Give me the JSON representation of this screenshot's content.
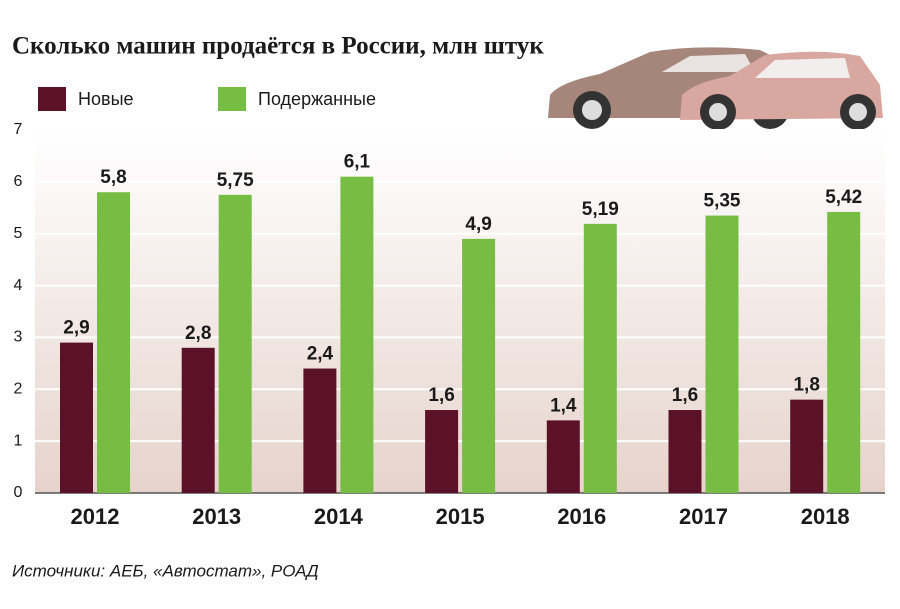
{
  "chart_data": {
    "type": "bar",
    "title": "Сколько машин продаётся в России, млн штук",
    "categories": [
      "2012",
      "2013",
      "2014",
      "2015",
      "2016",
      "2017",
      "2018"
    ],
    "series": [
      {
        "name": "Новые",
        "color": "#5b1128",
        "values": [
          2.9,
          2.8,
          2.4,
          1.6,
          1.4,
          1.6,
          1.8
        ],
        "value_labels": [
          "2,9",
          "2,8",
          "2,4",
          "1,6",
          "1,4",
          "1,6",
          "1,8"
        ]
      },
      {
        "name": "Подержанные",
        "color": "#77bd44",
        "values": [
          5.8,
          5.75,
          6.1,
          4.9,
          5.19,
          5.35,
          5.42
        ],
        "value_labels": [
          "5,8",
          "5,75",
          "6,1",
          "4,9",
          "5,19",
          "5,35",
          "5,42"
        ]
      }
    ],
    "ylim": [
      0,
      7
    ],
    "yticks": [
      0,
      1,
      2,
      3,
      4,
      5,
      6,
      7
    ],
    "grid": true,
    "source": "Источники: АЕБ, «Автостат», РОАД"
  }
}
